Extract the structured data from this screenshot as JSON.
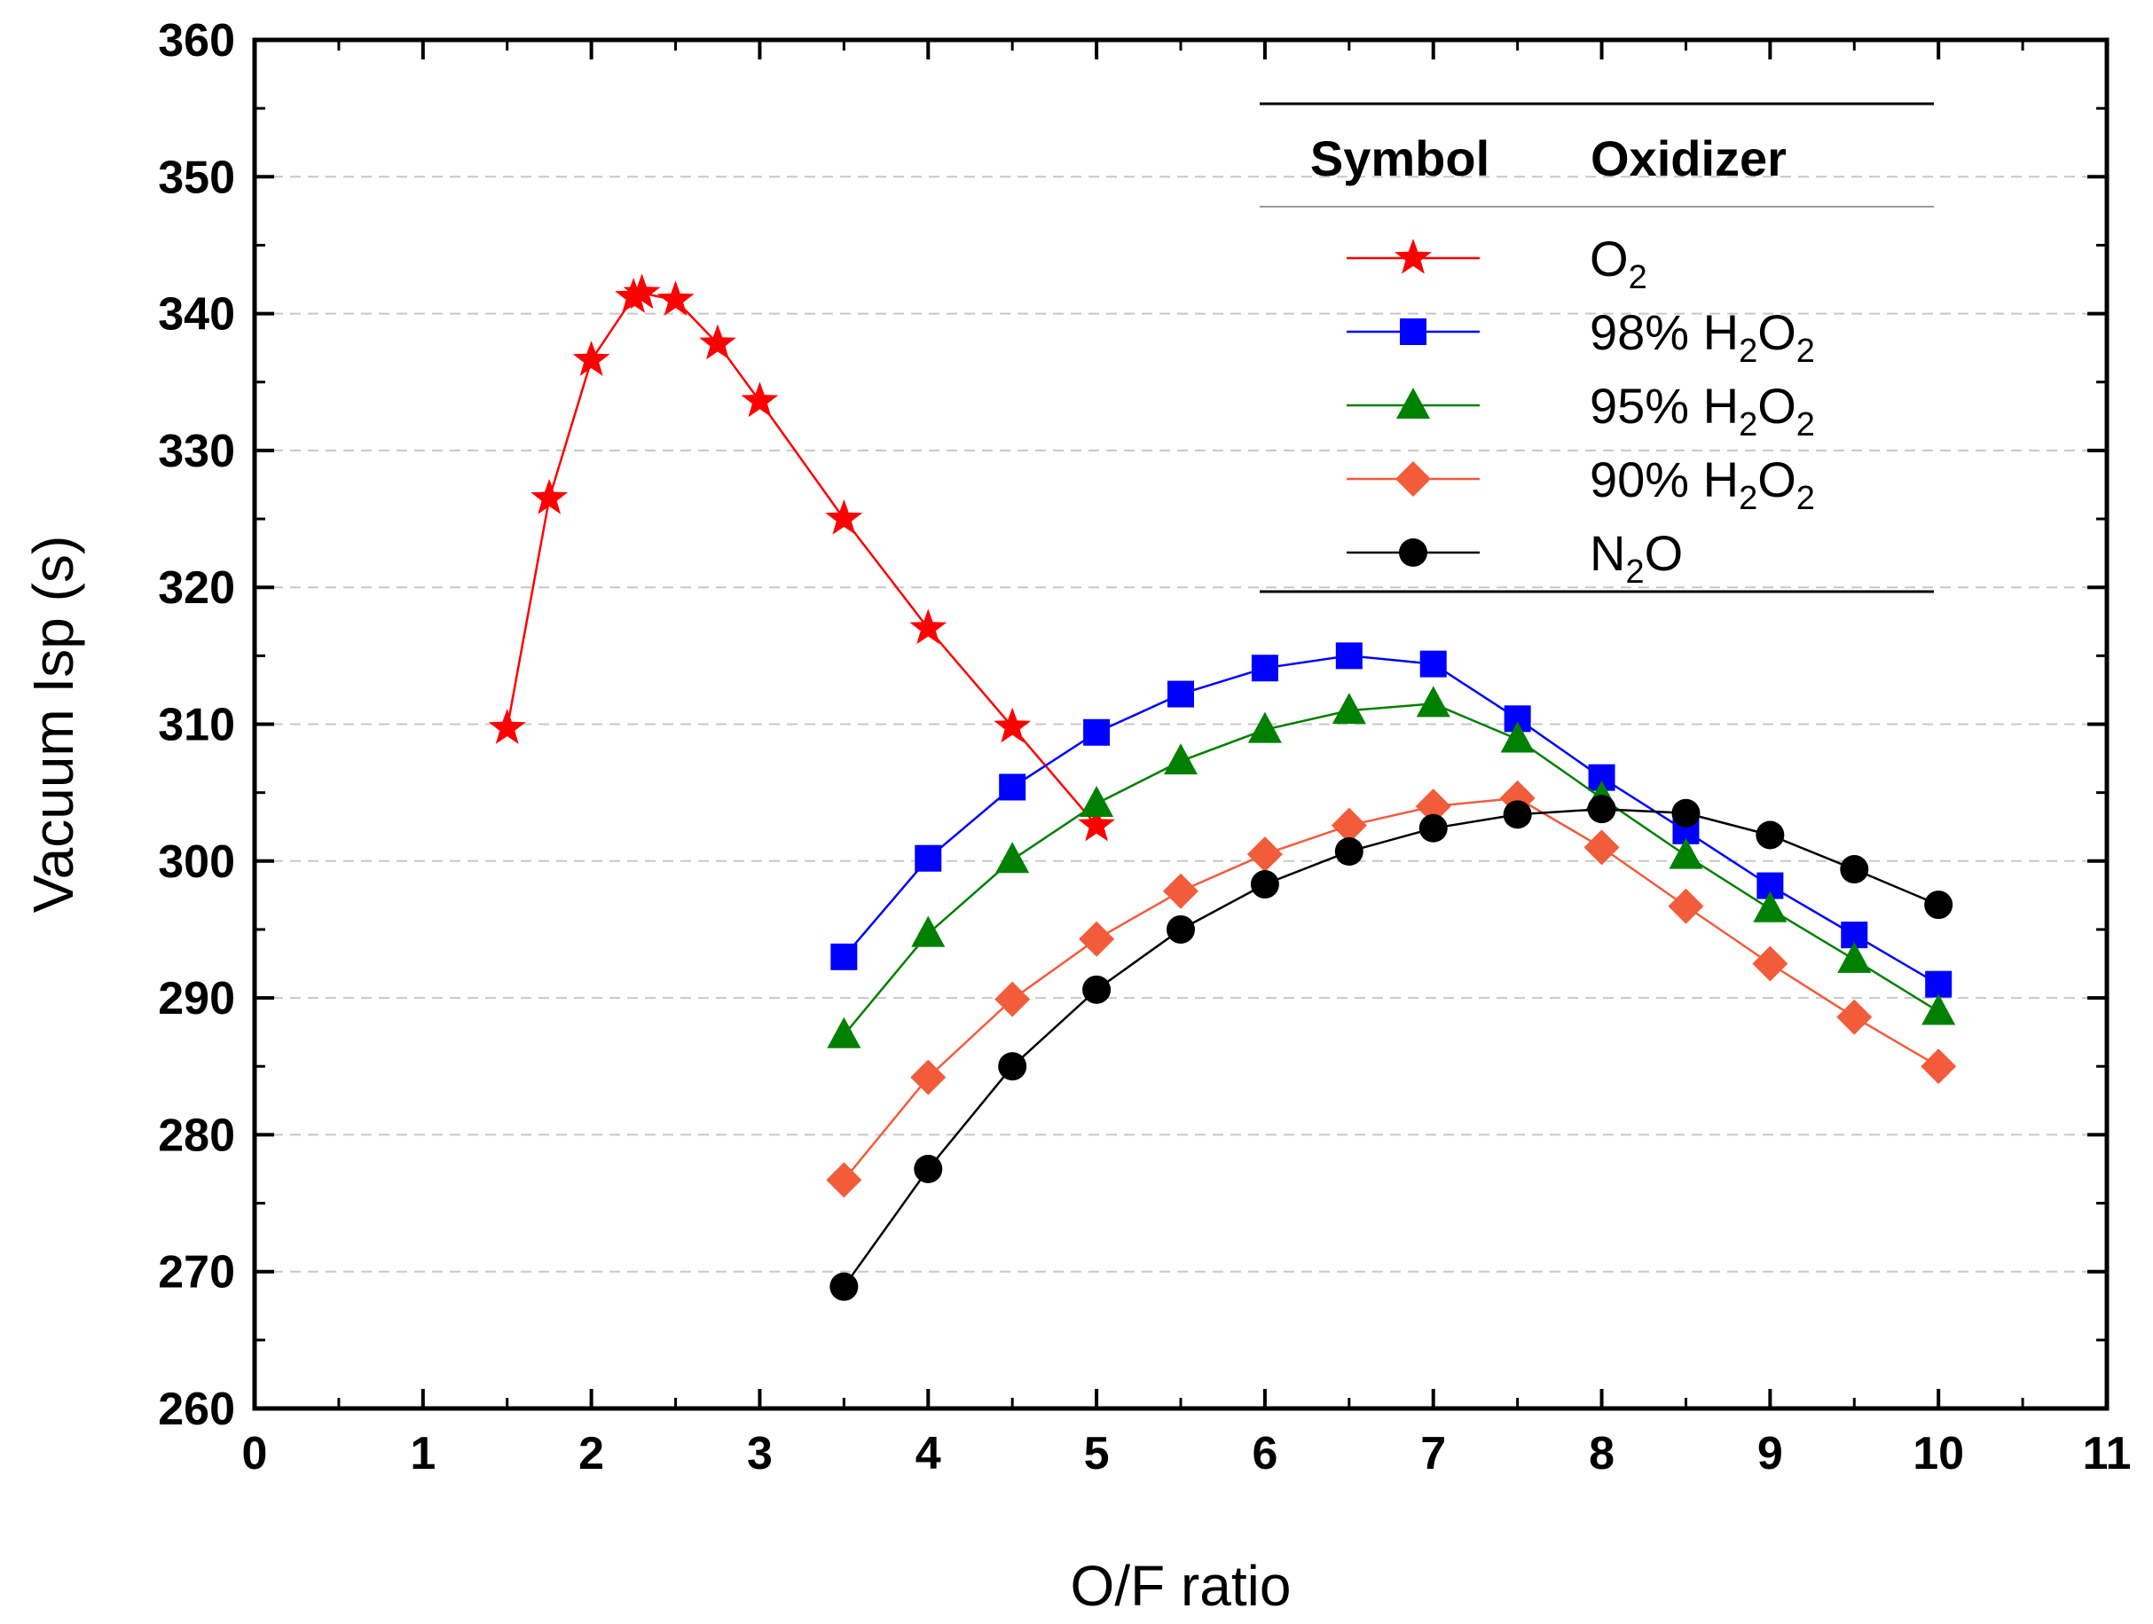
{
  "chart_data": {
    "type": "line",
    "title": "",
    "xlabel": "O/F ratio",
    "ylabel": "Vacuum Isp (s)",
    "xlim": [
      0,
      11
    ],
    "ylim": [
      260,
      360
    ],
    "xticks": [
      0,
      1,
      2,
      3,
      4,
      5,
      6,
      7,
      8,
      9,
      10,
      11
    ],
    "yticks": [
      260,
      270,
      280,
      290,
      300,
      310,
      320,
      330,
      340,
      350,
      360
    ],
    "grid": "horizontal dashed",
    "legend": {
      "placement": "top-right",
      "header_symbol": "Symbol",
      "header_oxidizer": "Oxidizer"
    },
    "series": [
      {
        "name": "O2",
        "label_main": "O",
        "label_sub": "2",
        "label_tail": "",
        "color": "#ff0000",
        "marker": "star",
        "x": [
          1.5,
          1.75,
          2.0,
          2.25,
          2.3,
          2.5,
          2.75,
          3.0,
          3.5,
          4.0,
          4.5,
          5.0
        ],
        "values": [
          309.7,
          326.5,
          336.6,
          341.2,
          341.5,
          341.0,
          337.8,
          333.6,
          325.0,
          317.0,
          309.8,
          302.6
        ]
      },
      {
        "name": "98% H2O2",
        "label_main": "98% H",
        "label_sub": "2",
        "label_tail": "O",
        "label_sub2": "2",
        "color": "#0000ff",
        "marker": "square",
        "x": [
          3.5,
          4.0,
          4.5,
          5.0,
          5.5,
          6.0,
          6.5,
          7.0,
          7.5,
          8.0,
          8.5,
          9.0,
          9.5,
          10.0
        ],
        "values": [
          293.0,
          300.2,
          305.4,
          309.4,
          312.2,
          314.1,
          315.0,
          314.4,
          310.4,
          306.1,
          302.2,
          298.2,
          294.6,
          291.0
        ]
      },
      {
        "name": "95% H2O2",
        "label_main": "95% H",
        "label_sub": "2",
        "label_tail": "O",
        "label_sub2": "2",
        "color": "#008000",
        "marker": "triangle",
        "x": [
          3.5,
          4.0,
          4.5,
          5.0,
          5.5,
          6.0,
          6.5,
          7.0,
          7.5,
          8.0,
          8.5,
          9.0,
          9.5,
          10.0
        ],
        "values": [
          287.3,
          294.7,
          300.1,
          304.2,
          307.3,
          309.6,
          311.0,
          311.5,
          308.9,
          304.6,
          300.4,
          296.5,
          292.8,
          289.0
        ]
      },
      {
        "name": "90% H2O2",
        "label_main": "90% H",
        "label_sub": "2",
        "label_tail": "O",
        "label_sub2": "2",
        "color": "#f25c3b",
        "marker": "diamond",
        "x": [
          3.5,
          4.0,
          4.5,
          5.0,
          5.5,
          6.0,
          6.5,
          7.0,
          7.5,
          8.0,
          8.5,
          9.0,
          9.5,
          10.0
        ],
        "values": [
          276.7,
          284.2,
          289.9,
          294.3,
          297.8,
          300.5,
          302.6,
          304.0,
          304.6,
          301.0,
          296.7,
          292.5,
          288.6,
          285.0
        ]
      },
      {
        "name": "N2O",
        "label_main": "N",
        "label_sub": "2",
        "label_tail": "O",
        "label_sub2": "",
        "color": "#000000",
        "marker": "circle",
        "x": [
          3.5,
          4.0,
          4.5,
          5.0,
          5.5,
          6.0,
          6.5,
          7.0,
          7.5,
          8.0,
          8.5,
          9.0,
          9.5,
          10.0
        ],
        "values": [
          268.9,
          277.5,
          285.0,
          290.6,
          295.0,
          298.3,
          300.7,
          302.4,
          303.4,
          303.8,
          303.5,
          301.9,
          299.4,
          296.8
        ]
      }
    ]
  }
}
